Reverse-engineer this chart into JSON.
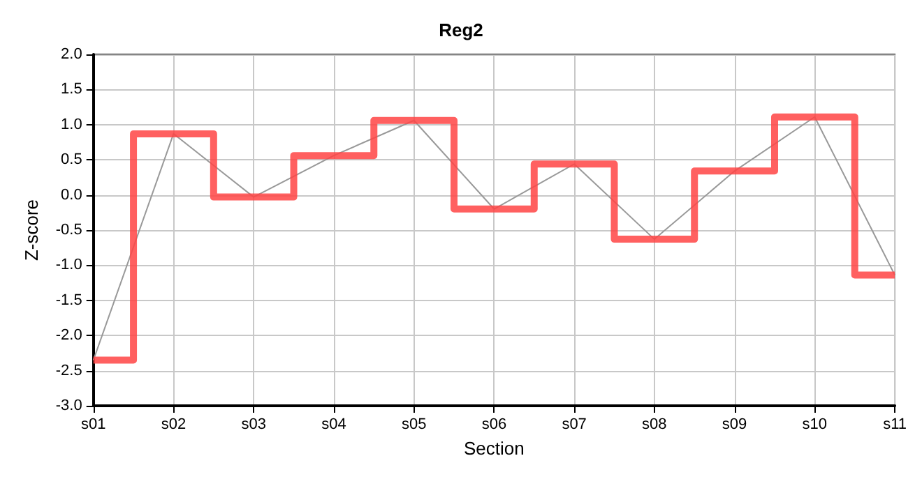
{
  "chart_data": {
    "type": "step",
    "title": "Reg2",
    "xlabel": "Section",
    "ylabel": "Z-score",
    "categories": [
      "s01",
      "s02",
      "s03",
      "s04",
      "s05",
      "s06",
      "s07",
      "s08",
      "s09",
      "s10",
      "s11"
    ],
    "series": [
      {
        "color": "#ff4444",
        "values": [
          -2.35,
          0.87,
          -0.03,
          0.56,
          1.06,
          -0.2,
          0.44,
          -0.63,
          0.34,
          1.11,
          -1.14
        ]
      },
      {
        "type": "line",
        "color": "#999999",
        "values": [
          -2.35,
          0.87,
          -0.03,
          0.56,
          1.06,
          -0.2,
          0.44,
          -0.63,
          0.34,
          1.11,
          -1.14
        ]
      }
    ],
    "ylim": [
      -3,
      2
    ],
    "yticks": [
      {
        "value": -3,
        "label": "-3.0"
      },
      -2.5,
      {
        "value": -2,
        "label": "-2.0"
      },
      -1.5,
      {
        "value": -1,
        "label": "-1.0"
      },
      -0.5,
      {
        "value": 0,
        "label": "0.0"
      },
      0.5,
      {
        "value": 1,
        "label": "1.0"
      },
      1.5,
      {
        "value": 2,
        "label": "2.0"
      }
    ],
    "grid": true
  }
}
